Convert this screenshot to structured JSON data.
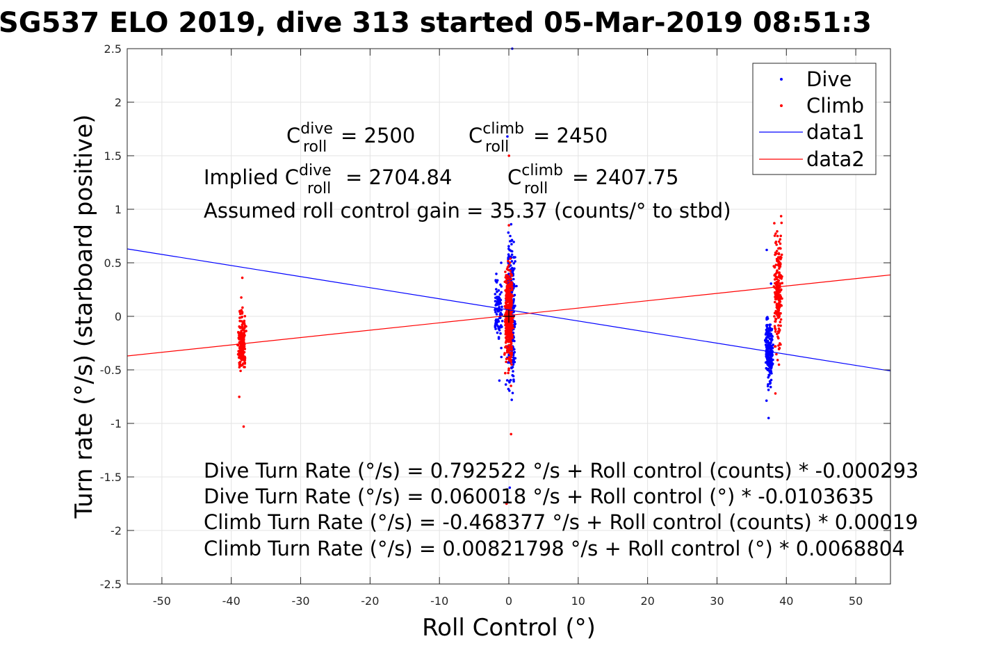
{
  "chart_data": {
    "type": "scatter",
    "title": "SG537 ELO 2019, dive 313 started 05-Mar-2019 08:51:3",
    "xlabel": "Roll Control (°)",
    "ylabel": "Turn rate (°/s) (starboard positive)",
    "xlim": [
      -55,
      55
    ],
    "ylim": [
      -2.5,
      2.5
    ],
    "x_ticks": [
      "-50",
      "-40",
      "-30",
      "-20",
      "-10",
      "0",
      "10",
      "20",
      "30",
      "40",
      "50"
    ],
    "y_ticks": [
      "2.5",
      "2",
      "1.5",
      "1",
      "0.5",
      "0",
      "-0.5",
      "-1",
      "-1.5",
      "-2",
      "-2.5"
    ],
    "grid": true,
    "legend_position": "top-right",
    "legend": [
      "Dive",
      "Climb",
      "data1",
      "data2"
    ],
    "colors": {
      "dive": "#0000ff",
      "climb": "#ff0000",
      "data1": "#0000ff",
      "data2": "#ff0000"
    },
    "series": [
      {
        "name": "Dive",
        "kind": "points",
        "clusters": [
          {
            "x": 0.3,
            "y_min": -1.6,
            "y_max": 2.5,
            "y_center": 0.02,
            "spread": 0.45,
            "count": 320
          },
          {
            "x": -1.5,
            "y_min": -0.6,
            "y_max": 0.5,
            "y_center": 0.05,
            "spread": 0.2,
            "count": 90
          },
          {
            "x": 37.5,
            "y_min": -0.95,
            "y_max": 0.62,
            "y_center": -0.32,
            "spread": 0.2,
            "count": 220
          }
        ]
      },
      {
        "name": "Climb",
        "kind": "points",
        "clusters": [
          {
            "x": -38.5,
            "y_min": -1.03,
            "y_max": 0.36,
            "y_center": -0.25,
            "spread": 0.2,
            "count": 200
          },
          {
            "x": 0.0,
            "y_min": -1.75,
            "y_max": 1.5,
            "y_center": 0.0,
            "spread": 0.3,
            "count": 420
          },
          {
            "x": 38.8,
            "y_min": -0.72,
            "y_max": 1.35,
            "y_center": 0.25,
            "spread": 0.35,
            "count": 220
          }
        ]
      },
      {
        "name": "data1",
        "kind": "line",
        "x": [
          -55,
          55
        ],
        "y": [
          0.630017,
          -0.509981
        ]
      },
      {
        "name": "data2",
        "kind": "line",
        "x": [
          -55,
          55
        ],
        "y": [
          -0.370208,
          0.386645
        ]
      }
    ],
    "annotations": {
      "c_dive_prefix": "C",
      "c_dive_sup": "dive",
      "c_dive_sub": "roll",
      "c_dive_value": " = 2500",
      "c_climb_prefix": "C",
      "c_climb_sup": "climb",
      "c_climb_sub": "roll",
      "c_climb_value": " = 2450",
      "implied_label": "Implied C",
      "implied_dive_sup": "dive",
      "implied_dive_sub": "roll",
      "implied_dive_value": " = 2704.84",
      "implied_climb_prefix": "C",
      "implied_climb_sup": "climb",
      "implied_climb_sub": "roll",
      "implied_climb_value": " = 2407.75",
      "gain": "Assumed roll control gain = 35.37 (counts/° to stbd)",
      "fit1": "Dive Turn Rate (°/s) = 0.792522 °/s + Roll control (counts) * -0.000293",
      "fit2": "Dive Turn Rate (°/s) = 0.060018 °/s + Roll control (°) * -0.0103635",
      "fit3": "Climb Turn Rate (°/s) = -0.468377 °/s + Roll control (counts) * 0.00019",
      "fit4": "Climb Turn Rate (°/s) = 0.00821798 °/s + Roll control (°) * 0.0068804"
    }
  }
}
